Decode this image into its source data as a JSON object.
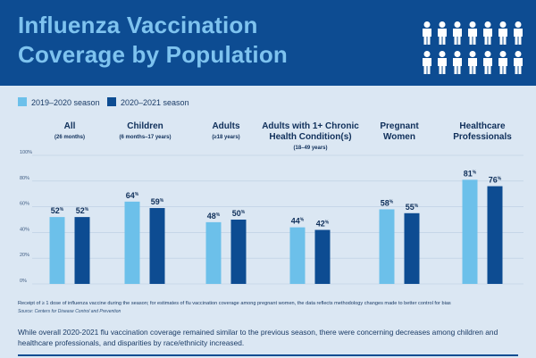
{
  "header": {
    "title": "Influenza Vaccination Coverage by Population",
    "colors": {
      "background": "#0d4c92",
      "title": "#7ec3ef",
      "icons": "#ffffff"
    }
  },
  "chart_data": {
    "type": "bar",
    "categories": [
      {
        "label": "All",
        "sub": "(26 months)"
      },
      {
        "label": "Children",
        "sub": "(6 months–17 years)"
      },
      {
        "label": "Adults",
        "sub": "(≥18 years)"
      },
      {
        "label": "Adults with 1+ Chronic Health Condition(s)",
        "sub": "(18–49 years)"
      },
      {
        "label": "Pregnant Women",
        "sub": ""
      },
      {
        "label": "Healthcare Professionals",
        "sub": ""
      }
    ],
    "series": [
      {
        "name": "2019–2020 season",
        "color": "#6cc0ea",
        "values": [
          52,
          64,
          48,
          44,
          58,
          81
        ]
      },
      {
        "name": "2020–2021 season",
        "color": "#0d4c92",
        "values": [
          52,
          59,
          50,
          42,
          55,
          76
        ]
      }
    ],
    "value_suffix": "%",
    "yticks": [
      "0%",
      "20%",
      "40%",
      "60%",
      "80%",
      "100%"
    ],
    "ylim": [
      0,
      100
    ],
    "legend_position": "top-left",
    "grid": true
  },
  "footnote": "Receipt of ≥ 1 dose of influenza vaccine during the season; for estimates of flu vaccination coverage among pregnant women, the data reflects methodology changes made to better control for bias",
  "source": "Source: Centers for Disease Control and Prevention",
  "summary": "While overall 2020-2021 flu vaccination coverage remained similar to the previous season, there were concerning decreases among children and healthcare professionals, and disparities by race/ethnicity increased."
}
